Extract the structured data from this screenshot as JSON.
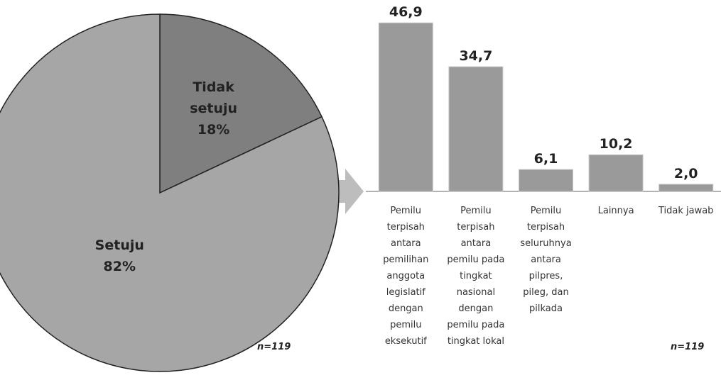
{
  "chart_data": [
    {
      "type": "pie",
      "categories": [
        "Tidak setuju",
        "Setuju"
      ],
      "values": [
        18,
        82
      ],
      "value_labels": [
        "18%",
        "82%"
      ],
      "colors": [
        "#7f7f7f",
        "#a6a6a6"
      ],
      "note": "n=119"
    },
    {
      "type": "bar",
      "categories": [
        "Pemilu terpisah antara pemilihan anggota legislatif dengan pemilu eksekutif",
        "Pemilu terpisah antara pemilu pada tingkat nasional dengan pemilu pada tingkat lokal",
        "Pemilu terpisah seluruhnya antara pilpres, pileg, dan pilkada",
        "Lainnya",
        "Tidak jawab"
      ],
      "values": [
        46.9,
        34.7,
        6.1,
        10.2,
        2.0
      ],
      "value_labels": [
        "46,9",
        "34,7",
        "6,1",
        "10,2",
        "2,0"
      ],
      "color": "#9a9a9a",
      "note": "n=119"
    }
  ]
}
